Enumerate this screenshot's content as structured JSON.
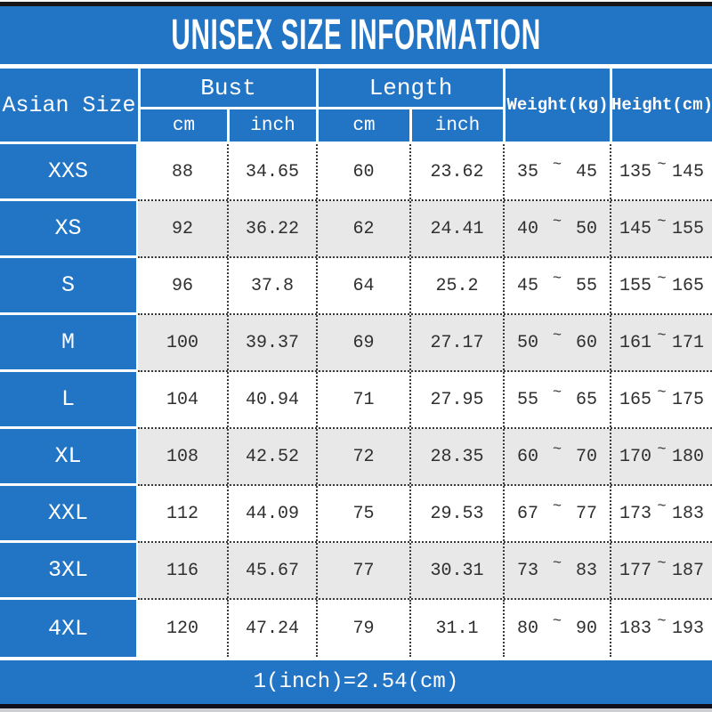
{
  "chart_data": {
    "type": "table",
    "title": "UNISEX SIZE INFORMATION",
    "corner_header": "Asian Size",
    "range_separator": "~",
    "column_groups": [
      {
        "label": "Bust",
        "children": [
          "cm",
          "inch"
        ]
      },
      {
        "label": "Length",
        "children": [
          "cm",
          "inch"
        ]
      },
      {
        "label": "Weight(kg)",
        "children": []
      },
      {
        "label": "Height(cm)",
        "children": []
      }
    ],
    "rows": [
      {
        "size": "XXS",
        "bust_cm": "88",
        "bust_inch": "34.65",
        "length_cm": "60",
        "length_inch": "23.62",
        "weight_min": "35",
        "weight_max": "45",
        "height_min": "135",
        "height_max": "145"
      },
      {
        "size": "XS",
        "bust_cm": "92",
        "bust_inch": "36.22",
        "length_cm": "62",
        "length_inch": "24.41",
        "weight_min": "40",
        "weight_max": "50",
        "height_min": "145",
        "height_max": "155"
      },
      {
        "size": "S",
        "bust_cm": "96",
        "bust_inch": "37.8",
        "length_cm": "64",
        "length_inch": "25.2",
        "weight_min": "45",
        "weight_max": "55",
        "height_min": "155",
        "height_max": "165"
      },
      {
        "size": "M",
        "bust_cm": "100",
        "bust_inch": "39.37",
        "length_cm": "69",
        "length_inch": "27.17",
        "weight_min": "50",
        "weight_max": "60",
        "height_min": "161",
        "height_max": "171"
      },
      {
        "size": "L",
        "bust_cm": "104",
        "bust_inch": "40.94",
        "length_cm": "71",
        "length_inch": "27.95",
        "weight_min": "55",
        "weight_max": "65",
        "height_min": "165",
        "height_max": "175"
      },
      {
        "size": "XL",
        "bust_cm": "108",
        "bust_inch": "42.52",
        "length_cm": "72",
        "length_inch": "28.35",
        "weight_min": "60",
        "weight_max": "70",
        "height_min": "170",
        "height_max": "180"
      },
      {
        "size": "XXL",
        "bust_cm": "112",
        "bust_inch": "44.09",
        "length_cm": "75",
        "length_inch": "29.53",
        "weight_min": "67",
        "weight_max": "77",
        "height_min": "173",
        "height_max": "183"
      },
      {
        "size": "3XL",
        "bust_cm": "116",
        "bust_inch": "45.67",
        "length_cm": "77",
        "length_inch": "30.31",
        "weight_min": "73",
        "weight_max": "83",
        "height_min": "177",
        "height_max": "187"
      },
      {
        "size": "4XL",
        "bust_cm": "120",
        "bust_inch": "47.24",
        "length_cm": "79",
        "length_inch": "31.1",
        "weight_min": "80",
        "weight_max": "90",
        "height_min": "183",
        "height_max": "193"
      }
    ],
    "footnote": "1(inch)=2.54(cm)"
  },
  "colors": {
    "accent_blue": "#2274c5",
    "row_alt_gray": "#e8e8e8",
    "text_dark": "#2f2f2f",
    "header_text": "#ffffff"
  }
}
